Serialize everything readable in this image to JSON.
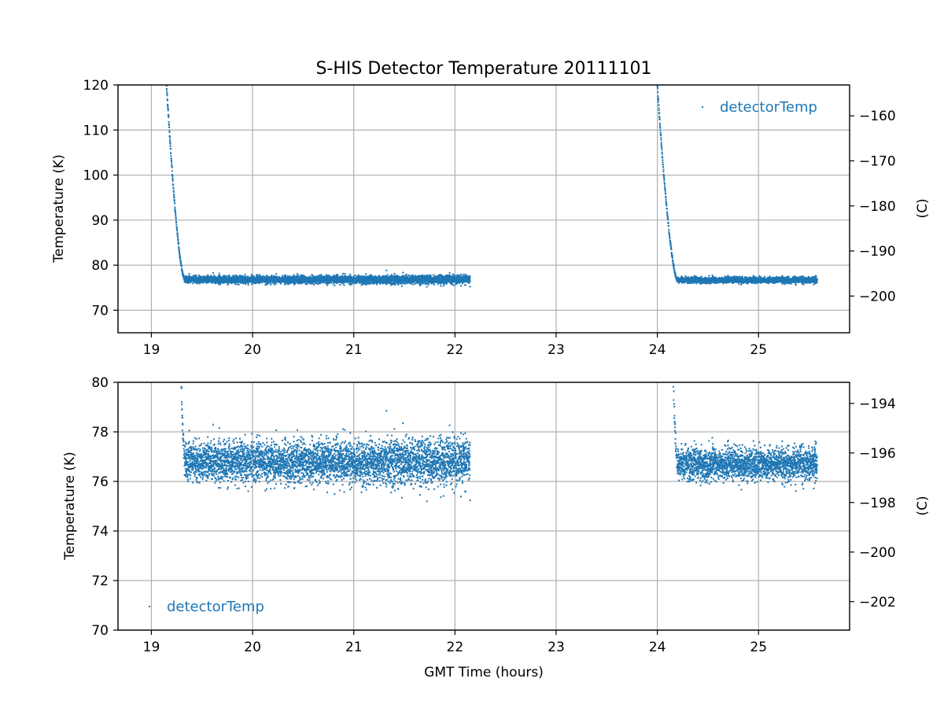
{
  "chart_data": [
    {
      "type": "scatter",
      "title": "S-HIS Detector Temperature 20111101",
      "xlabel": "",
      "ylabel": "Temperature (K)",
      "ylabel_right": "(C)",
      "xlim": [
        18.67,
        25.9
      ],
      "ylim": [
        65,
        120
      ],
      "ylim_right_celsius": [
        -208.15,
        -153.15
      ],
      "xticks": [
        "19",
        "20",
        "21",
        "22",
        "23",
        "24",
        "25"
      ],
      "yticks": [
        "70",
        "80",
        "90",
        "100",
        "110",
        "120"
      ],
      "yticks_right": [
        "−200",
        "−190",
        "−180",
        "−170",
        "−160"
      ],
      "grid": true,
      "legend": {
        "placement": "top-right",
        "entries": [
          "detectorTemp"
        ]
      },
      "color": "#1f77b4",
      "series": [
        {
          "name": "detectorTemp",
          "segments": [
            {
              "x_start": 19.15,
              "x_drop_end": 19.33,
              "x_end": 22.15,
              "y_start": 120,
              "y_plateau": 76.8,
              "noise": 0.7,
              "noise_late": 0.9
            },
            {
              "x_start": 24.0,
              "x_drop_end": 24.2,
              "x_end": 25.58,
              "y_start": 120,
              "y_plateau": 76.7,
              "noise": 0.6,
              "noise_late": 0.6
            }
          ]
        }
      ]
    },
    {
      "type": "scatter",
      "title": "",
      "xlabel": "GMT Time (hours)",
      "ylabel": "Temperature (K)",
      "ylabel_right": "(C)",
      "xlim": [
        18.67,
        25.9
      ],
      "ylim": [
        70,
        80
      ],
      "ylim_right_celsius": [
        -203.15,
        -193.15
      ],
      "xticks": [
        "19",
        "20",
        "21",
        "22",
        "23",
        "24",
        "25"
      ],
      "yticks": [
        "70",
        "72",
        "74",
        "76",
        "78",
        "80"
      ],
      "yticks_right": [
        "−202",
        "−200",
        "−198",
        "−196",
        "−194"
      ],
      "grid": true,
      "legend": {
        "placement": "bottom-left",
        "entries": [
          "detectorTemp"
        ]
      },
      "color": "#1f77b4",
      "series": [
        {
          "name": "detectorTemp",
          "segments": [
            {
              "x_start": 19.15,
              "x_drop_end": 19.33,
              "x_end": 22.15,
              "y_start": 120,
              "y_plateau": 76.8,
              "noise": 0.7,
              "noise_late": 0.9
            },
            {
              "x_start": 24.0,
              "x_drop_end": 24.2,
              "x_end": 25.58,
              "y_start": 120,
              "y_plateau": 76.7,
              "noise": 0.6,
              "noise_late": 0.6
            }
          ]
        }
      ]
    }
  ]
}
